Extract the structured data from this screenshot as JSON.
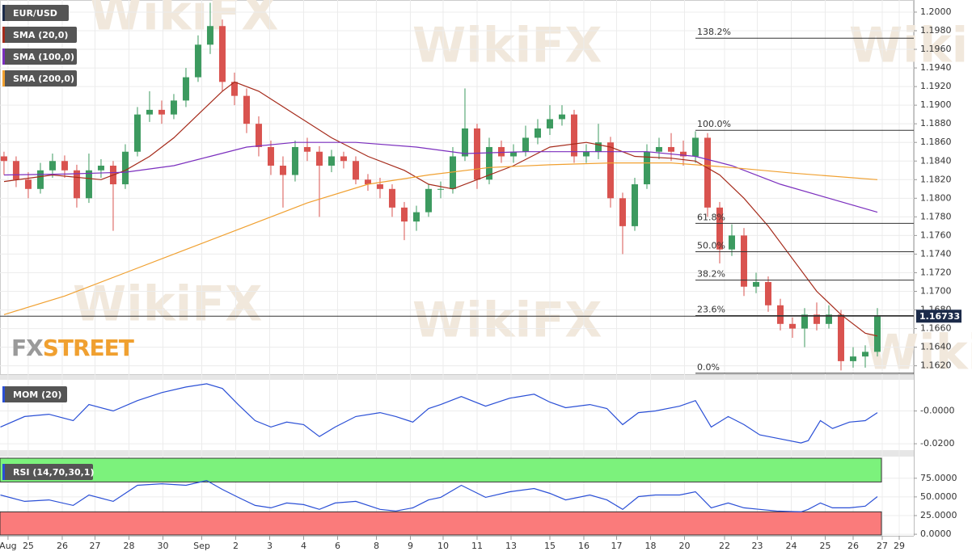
{
  "chart_data": {
    "type": "candlestick",
    "title": "EUR/USD",
    "up_color": "#3c9a5f",
    "down_color": "#d9534f",
    "grid": true,
    "xlim": [
      -0.33,
      75
    ],
    "ylim": [
      1.1611,
      1.2013
    ],
    "yticks": [
      {
        "value": 1.162,
        "label": "1.1620"
      },
      {
        "value": 1.164,
        "label": "1.1640"
      },
      {
        "value": 1.166,
        "label": "1.1660"
      },
      {
        "value": 1.168,
        "label": "1.1680"
      },
      {
        "value": 1.17,
        "label": "1.1700"
      },
      {
        "value": 1.172,
        "label": "1.1720"
      },
      {
        "value": 1.174,
        "label": "1.1740"
      },
      {
        "value": 1.176,
        "label": "1.1760"
      },
      {
        "value": 1.178,
        "label": "1.1780"
      },
      {
        "value": 1.18,
        "label": "1.1800"
      },
      {
        "value": 1.182,
        "label": "1.1820"
      },
      {
        "value": 1.184,
        "label": "1.1840"
      },
      {
        "value": 1.186,
        "label": "1.1860"
      },
      {
        "value": 1.188,
        "label": "1.1880"
      },
      {
        "value": 1.19,
        "label": "1.1900"
      },
      {
        "value": 1.192,
        "label": "1.1920"
      },
      {
        "value": 1.194,
        "label": "1.1940"
      },
      {
        "value": 1.196,
        "label": "1.1960"
      },
      {
        "value": 1.198,
        "label": "1.1980"
      },
      {
        "value": 1.2,
        "label": "1.2000"
      }
    ],
    "xticks": [
      {
        "value": 0.33,
        "label": "Aug"
      },
      {
        "value": 2,
        "label": "25"
      },
      {
        "value": 4.8,
        "label": "26"
      },
      {
        "value": 7.5,
        "label": "27"
      },
      {
        "value": 10.3,
        "label": "28"
      },
      {
        "value": 13.1,
        "label": "30"
      },
      {
        "value": 16.3,
        "label": "Sep"
      },
      {
        "value": 19.1,
        "label": "2"
      },
      {
        "value": 21.9,
        "label": "3"
      },
      {
        "value": 24.7,
        "label": "4"
      },
      {
        "value": 27.5,
        "label": "6"
      },
      {
        "value": 30.7,
        "label": "8"
      },
      {
        "value": 33.5,
        "label": "9"
      },
      {
        "value": 36.2,
        "label": "10"
      },
      {
        "value": 39,
        "label": "11"
      },
      {
        "value": 41.8,
        "label": "13"
      },
      {
        "value": 45,
        "label": "15"
      },
      {
        "value": 47.8,
        "label": "16"
      },
      {
        "value": 50.5,
        "label": "17"
      },
      {
        "value": 53.3,
        "label": "18"
      },
      {
        "value": 56.1,
        "label": "20"
      },
      {
        "value": 59.4,
        "label": "22"
      },
      {
        "value": 62.1,
        "label": "23"
      },
      {
        "value": 64.9,
        "label": "24"
      },
      {
        "value": 67.7,
        "label": "25"
      },
      {
        "value": 70,
        "label": "26"
      },
      {
        "value": 72.4,
        "label": "27"
      },
      {
        "value": 73.8,
        "label": "29"
      }
    ],
    "candles": [
      [
        1.1845,
        1.185,
        1.1825,
        1.184
      ],
      [
        1.184,
        1.1845,
        1.1812,
        1.182
      ],
      [
        1.182,
        1.1828,
        1.18,
        1.181
      ],
      [
        1.181,
        1.1838,
        1.1805,
        1.183
      ],
      [
        1.183,
        1.1848,
        1.1822,
        1.184
      ],
      [
        1.184,
        1.1846,
        1.1822,
        1.183
      ],
      [
        1.183,
        1.1836,
        1.179,
        1.18
      ],
      [
        1.18,
        1.1848,
        1.1795,
        1.183
      ],
      [
        1.183,
        1.1842,
        1.1822,
        1.1835
      ],
      [
        1.1835,
        1.184,
        1.1765,
        1.1815
      ],
      [
        1.1815,
        1.1858,
        1.181,
        1.185
      ],
      [
        1.185,
        1.1898,
        1.1845,
        1.189
      ],
      [
        1.189,
        1.1915,
        1.1882,
        1.1895
      ],
      [
        1.1895,
        1.1905,
        1.188,
        1.189
      ],
      [
        1.189,
        1.1912,
        1.1885,
        1.1905
      ],
      [
        1.1905,
        1.194,
        1.1898,
        1.193
      ],
      [
        1.193,
        1.1975,
        1.1925,
        1.1965
      ],
      [
        1.1965,
        1.201,
        1.1955,
        1.1985
      ],
      [
        1.1985,
        1.1992,
        1.1915,
        1.1925
      ],
      [
        1.1925,
        1.1935,
        1.19,
        1.191
      ],
      [
        1.191,
        1.1918,
        1.187,
        1.188
      ],
      [
        1.188,
        1.1888,
        1.1845,
        1.1855
      ],
      [
        1.1855,
        1.1862,
        1.1825,
        1.1835
      ],
      [
        1.1835,
        1.1845,
        1.179,
        1.1825
      ],
      [
        1.1825,
        1.1862,
        1.1818,
        1.1855
      ],
      [
        1.1855,
        1.1865,
        1.184,
        1.185
      ],
      [
        1.185,
        1.1856,
        1.178,
        1.1835
      ],
      [
        1.1835,
        1.1852,
        1.1828,
        1.1845
      ],
      [
        1.1845,
        1.185,
        1.1832,
        1.184
      ],
      [
        1.184,
        1.1845,
        1.1815,
        1.182
      ],
      [
        1.182,
        1.1826,
        1.1808,
        1.1815
      ],
      [
        1.1815,
        1.1822,
        1.18,
        1.181
      ],
      [
        1.181,
        1.1815,
        1.178,
        1.179
      ],
      [
        1.179,
        1.1796,
        1.1755,
        1.1775
      ],
      [
        1.1775,
        1.1792,
        1.1765,
        1.1785
      ],
      [
        1.1785,
        1.1815,
        1.178,
        1.181
      ],
      [
        1.181,
        1.1818,
        1.18,
        1.181
      ],
      [
        1.181,
        1.1855,
        1.1805,
        1.1845
      ],
      [
        1.1845,
        1.1918,
        1.184,
        1.1875
      ],
      [
        1.1875,
        1.188,
        1.181,
        1.182
      ],
      [
        1.182,
        1.1865,
        1.1815,
        1.1855
      ],
      [
        1.1855,
        1.1862,
        1.1838,
        1.1845
      ],
      [
        1.1845,
        1.1858,
        1.1838,
        1.185
      ],
      [
        1.185,
        1.1878,
        1.1845,
        1.1865
      ],
      [
        1.1865,
        1.1885,
        1.1858,
        1.1875
      ],
      [
        1.1875,
        1.19,
        1.1868,
        1.1885
      ],
      [
        1.1885,
        1.19,
        1.1878,
        1.189
      ],
      [
        1.189,
        1.1895,
        1.1838,
        1.1845
      ],
      [
        1.1845,
        1.1858,
        1.1838,
        1.185
      ],
      [
        1.185,
        1.188,
        1.1842,
        1.186
      ],
      [
        1.186,
        1.1866,
        1.179,
        1.18
      ],
      [
        1.18,
        1.1806,
        1.174,
        1.177
      ],
      [
        1.177,
        1.1822,
        1.1765,
        1.1815
      ],
      [
        1.1815,
        1.1858,
        1.181,
        1.185
      ],
      [
        1.185,
        1.1865,
        1.1842,
        1.1855
      ],
      [
        1.1855,
        1.187,
        1.184,
        1.185
      ],
      [
        1.185,
        1.1862,
        1.1835,
        1.1845
      ],
      [
        1.1845,
        1.1872,
        1.1838,
        1.1865
      ],
      [
        1.1865,
        1.187,
        1.178,
        1.179
      ],
      [
        1.179,
        1.1796,
        1.173,
        1.1745
      ],
      [
        1.1745,
        1.1772,
        1.1738,
        1.176
      ],
      [
        1.176,
        1.1768,
        1.1695,
        1.1705
      ],
      [
        1.1705,
        1.172,
        1.1698,
        1.171
      ],
      [
        1.171,
        1.1716,
        1.1678,
        1.1685
      ],
      [
        1.1685,
        1.1692,
        1.1658,
        1.1665
      ],
      [
        1.1665,
        1.1672,
        1.165,
        1.166
      ],
      [
        1.166,
        1.1682,
        1.164,
        1.1675
      ],
      [
        1.1675,
        1.1688,
        1.1658,
        1.1665
      ],
      [
        1.1665,
        1.1685,
        1.166,
        1.1675
      ],
      [
        1.1675,
        1.168,
        1.1615,
        1.1625
      ],
      [
        1.1625,
        1.164,
        1.1618,
        1.163
      ],
      [
        1.163,
        1.1642,
        1.1618,
        1.1635
      ],
      [
        1.1635,
        1.1682,
        1.163,
        1.1673
      ]
    ],
    "series": [
      {
        "name": "SMA (20,0)",
        "color": "#a52a1a",
        "x": [
          0,
          4,
          8,
          10,
          12,
          14,
          16,
          18,
          19,
          21,
          24,
          27,
          30,
          33,
          35,
          37,
          39,
          42,
          45,
          48,
          50,
          52,
          55,
          57,
          59,
          61,
          63,
          65,
          67,
          69,
          71,
          72
        ],
        "values": [
          1.1818,
          1.1825,
          1.182,
          1.183,
          1.1845,
          1.1865,
          1.189,
          1.1915,
          1.1925,
          1.1915,
          1.189,
          1.1865,
          1.1845,
          1.183,
          1.1815,
          1.181,
          1.182,
          1.1835,
          1.1855,
          1.186,
          1.1855,
          1.1845,
          1.1843,
          1.184,
          1.1825,
          1.18,
          1.177,
          1.1735,
          1.17,
          1.1675,
          1.1655,
          1.1652
        ]
      },
      {
        "name": "SMA (100,0)",
        "color": "#7b2fbe",
        "x": [
          0,
          5,
          10,
          14,
          17,
          20,
          24,
          29,
          34,
          38,
          43,
          48,
          53,
          57,
          60,
          64,
          68,
          72
        ],
        "values": [
          1.1825,
          1.1826,
          1.1828,
          1.1835,
          1.1845,
          1.1855,
          1.186,
          1.186,
          1.1855,
          1.1848,
          1.185,
          1.185,
          1.185,
          1.1845,
          1.1835,
          1.1815,
          1.18,
          1.1785
        ]
      },
      {
        "name": "SMA (200,0)",
        "color": "#f0a030",
        "x": [
          0,
          5,
          10,
          15,
          20,
          25,
          30,
          35,
          40,
          45,
          50,
          55,
          60,
          65,
          72
        ],
        "values": [
          1.1675,
          1.1695,
          1.172,
          1.1745,
          1.177,
          1.1795,
          1.1815,
          1.1825,
          1.1833,
          1.1836,
          1.1838,
          1.1838,
          1.1833,
          1.1827,
          1.182
        ]
      }
    ],
    "fib_start": 57,
    "fib_levels": [
      {
        "name": "138.2%",
        "value": 1.1972
      },
      {
        "name": "100.0%",
        "value": 1.1873
      },
      {
        "name": "61.8%",
        "value": 1.1773
      },
      {
        "name": "50.0%",
        "value": 1.17425
      },
      {
        "name": "38.2%",
        "value": 1.1712
      },
      {
        "name": "23.6%",
        "value": 1.1674
      },
      {
        "name": "0.0%",
        "value": 1.1612
      }
    ],
    "last_price": 1.16733,
    "watermark": "WikiFX",
    "logo": {
      "fx": "FX",
      "street": "STREET"
    },
    "indicators": [
      {
        "name": "MOM (20)",
        "color": "#2a4fd6",
        "ylim": [
          -0.0234,
          0.0185
        ],
        "yticks": [
          {
            "value": 0,
            "label": "-0.0000"
          },
          {
            "value": -0.02,
            "label": "-0.0200"
          }
        ],
        "x": [
          -0.3,
          1.7,
          3.7,
          5.7,
          7,
          9,
          11,
          13,
          15,
          16.7,
          18,
          19.3,
          20.7,
          22,
          23.3,
          24.7,
          26,
          27.3,
          29,
          31,
          32.3,
          33.7,
          35,
          36,
          37.7,
          39.7,
          41.7,
          43.7,
          45,
          46.3,
          48.3,
          49.7,
          51,
          52.3,
          53.7,
          55.7,
          57,
          58.3,
          59.7,
          61,
          62.3,
          63.7,
          65.7,
          66.3,
          67.3,
          68.3,
          69.7,
          71,
          72
        ],
        "values": [
          -0.0098,
          -0.0034,
          -0.002,
          -0.0059,
          0.0039,
          0,
          0.0063,
          0.0112,
          0.0146,
          0.0166,
          0.0137,
          0.0039,
          -0.0059,
          -0.0098,
          -0.0068,
          -0.0083,
          -0.0156,
          -0.0098,
          -0.0034,
          -0.001,
          -0.0034,
          -0.0068,
          0.0015,
          0.0039,
          0.0088,
          0.0029,
          0.0078,
          0.0102,
          0.0054,
          0.002,
          0.0039,
          0.0015,
          -0.0083,
          -0.001,
          0,
          0.0029,
          0.0063,
          -0.0098,
          -0.0034,
          -0.0083,
          -0.0146,
          -0.0166,
          -0.0195,
          -0.0181,
          -0.0059,
          -0.0107,
          -0.0068,
          -0.0059,
          -0.001
        ]
      },
      {
        "name": "RSI (14,70,30,1)",
        "color": "#2a4fd6",
        "ylim": [
          -1,
          101.8
        ],
        "overbought": 70,
        "oversold": 30,
        "yticks": [
          {
            "value": 0,
            "label": "0.0000"
          },
          {
            "value": 25,
            "label": "25.0000"
          },
          {
            "value": 50,
            "label": "50.0000"
          },
          {
            "value": 75,
            "label": "75.0000"
          }
        ],
        "x": [
          -0.3,
          1.7,
          3.7,
          5.7,
          7,
          9,
          11,
          13,
          15,
          16.7,
          18,
          19.3,
          20.7,
          22,
          23.3,
          24.7,
          26,
          27.3,
          29,
          31,
          32.3,
          33.7,
          35,
          36,
          37.7,
          39.7,
          41.7,
          43.7,
          45,
          46.3,
          48.3,
          49.7,
          51,
          52.3,
          53.7,
          55.7,
          57,
          58.3,
          59.7,
          61,
          62.3,
          63.7,
          65.7,
          66.3,
          67.3,
          68.3,
          69.7,
          71,
          72
        ],
        "values": [
          52.6,
          44,
          46,
          38.6,
          52.6,
          44,
          65.5,
          67.6,
          65.5,
          71.9,
          60,
          49.4,
          38.6,
          35.4,
          41.8,
          39.7,
          33.3,
          41.8,
          44,
          33.3,
          31.1,
          35.4,
          46,
          49.4,
          65.5,
          49.4,
          56.9,
          61.2,
          54.7,
          46,
          52.6,
          46,
          33.3,
          50.4,
          52.6,
          52.6,
          56.9,
          35.4,
          41.8,
          35.4,
          33.3,
          31.1,
          30,
          33.3,
          41.8,
          35.4,
          35.4,
          37.6,
          50.4
        ]
      }
    ]
  }
}
